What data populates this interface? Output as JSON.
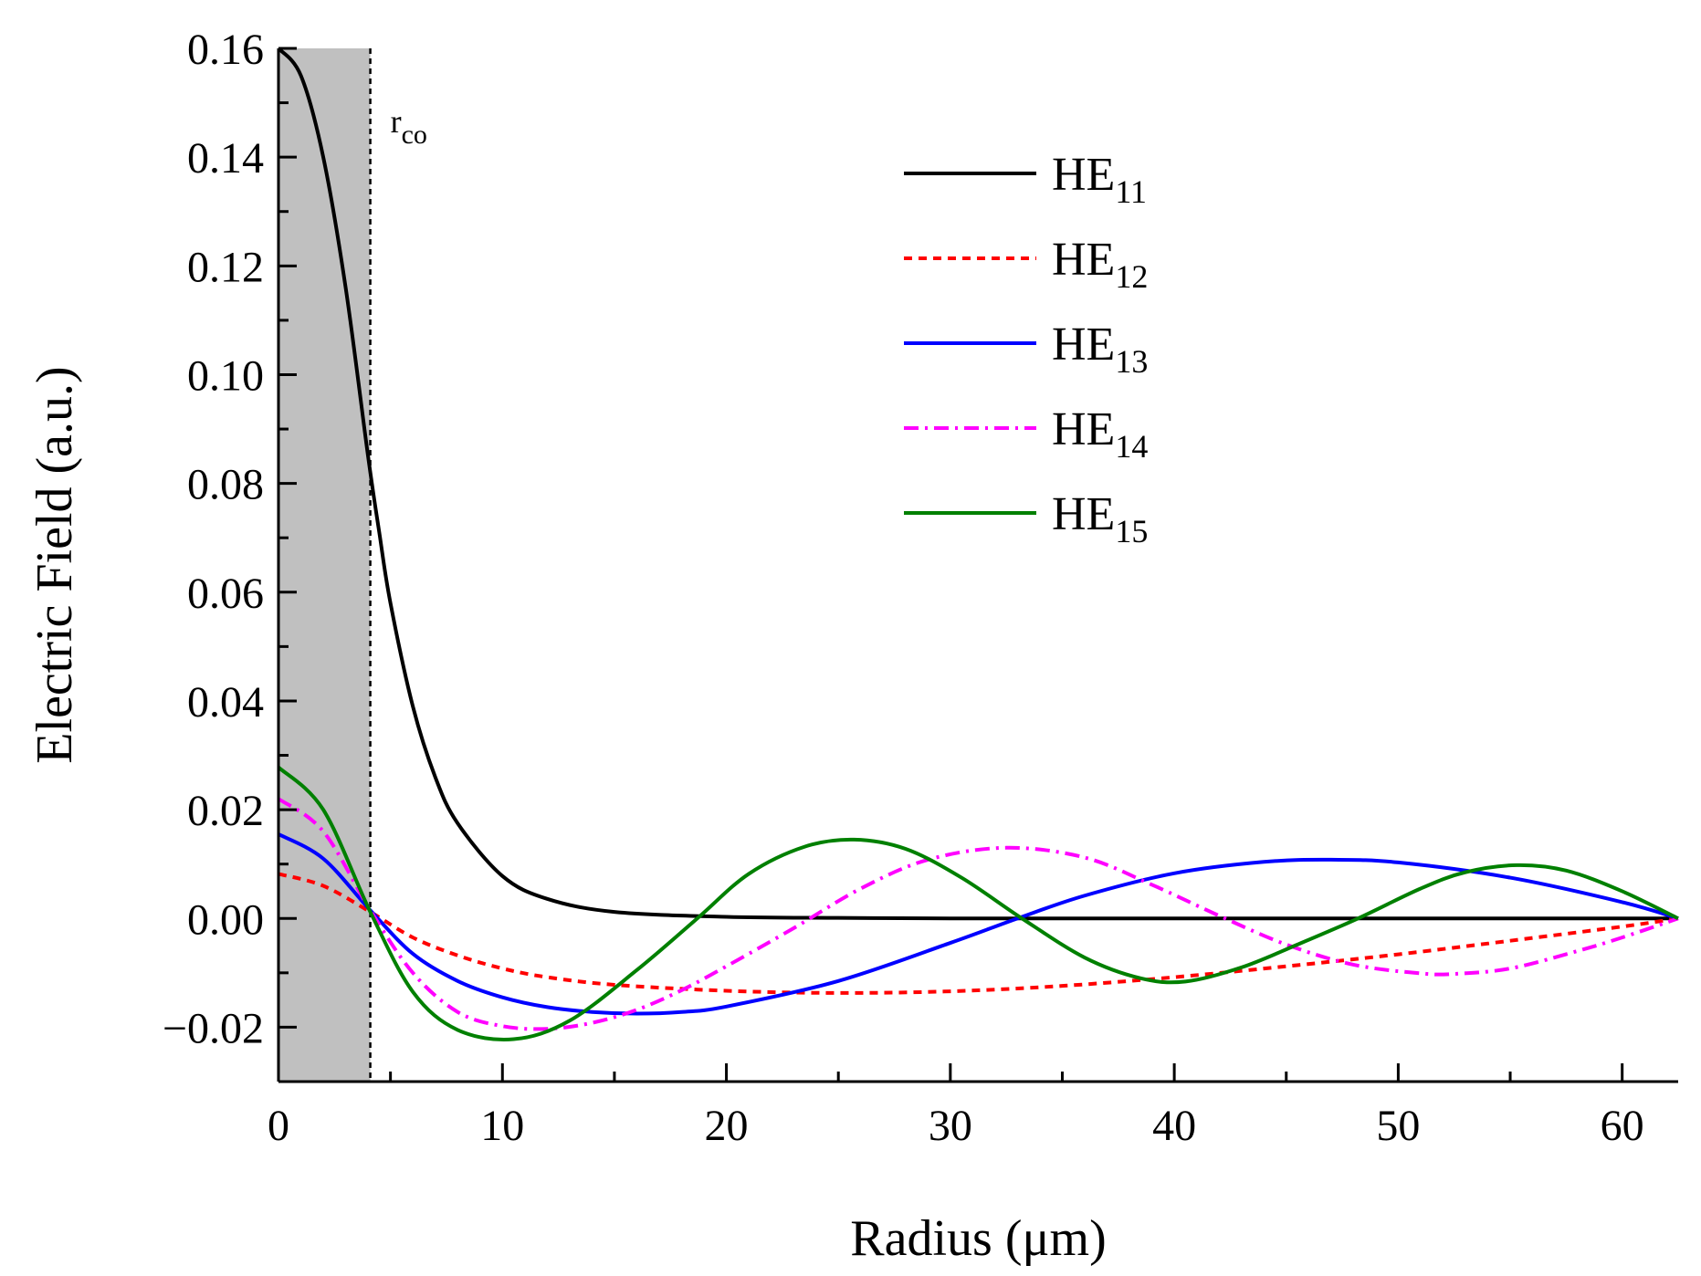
{
  "chart_data": {
    "type": "line",
    "title": "",
    "xlabel": "Radius (μm)",
    "ylabel": "Electric Field (a.u.)",
    "xlim": [
      0,
      62.5
    ],
    "ylim": [
      -0.03,
      0.16
    ],
    "xticks": [
      0,
      10,
      20,
      30,
      40,
      50,
      60
    ],
    "xtick_labels": [
      "0",
      "10",
      "20",
      "30",
      "40",
      "50",
      "60"
    ],
    "yticks": [
      -0.02,
      0.0,
      0.02,
      0.04,
      0.06,
      0.08,
      0.1,
      0.12,
      0.14,
      0.16
    ],
    "ytick_labels": [
      "−0.02",
      "0.00",
      "0.02",
      "0.04",
      "0.06",
      "0.08",
      "0.10",
      "0.12",
      "0.14",
      "0.16"
    ],
    "grid": false,
    "legend_position": "top-right",
    "core_region": {
      "x_start": 0,
      "x_end": 4.1,
      "fill": "#c0c0c0"
    },
    "annotation": {
      "text": "r",
      "subscript": "co",
      "x": 4.1
    },
    "series": [
      {
        "name": "HE11",
        "label_main": "HE",
        "label_sub": "11",
        "color": "#000000",
        "dash": "solid",
        "x": [
          0,
          1,
          2,
          3,
          4,
          4.5,
          5,
          6,
          7,
          8,
          10,
          12,
          15,
          20,
          25,
          30,
          40,
          50,
          62.5
        ],
        "y": [
          0.16,
          0.155,
          0.14,
          0.116,
          0.085,
          0.071,
          0.058,
          0.039,
          0.026,
          0.0175,
          0.0078,
          0.0036,
          0.0012,
          0.0003,
          0.0001,
          0.0,
          0.0,
          0.0,
          0.0
        ]
      },
      {
        "name": "HE12",
        "label_main": "HE",
        "label_sub": "12",
        "color": "#ff0000",
        "dash": "dashed",
        "x": [
          0,
          2,
          4.1,
          6,
          8,
          10,
          12,
          15,
          20,
          25,
          30,
          35,
          40,
          45,
          50,
          55,
          60,
          62.5
        ],
        "y": [
          0.0082,
          0.006,
          0.0012,
          -0.0035,
          -0.0068,
          -0.0092,
          -0.0108,
          -0.0122,
          -0.0133,
          -0.0137,
          -0.0134,
          -0.0124,
          -0.0108,
          -0.0088,
          -0.0066,
          -0.0041,
          -0.0015,
          0.0
        ]
      },
      {
        "name": "HE13",
        "label_main": "HE",
        "label_sub": "13",
        "color": "#0000ff",
        "dash": "solid",
        "x": [
          0,
          2,
          4.1,
          6,
          8,
          10,
          12,
          14,
          16,
          18,
          20,
          25,
          30,
          33,
          36,
          40,
          44,
          47,
          50,
          55,
          60,
          62.5
        ],
        "y": [
          0.0155,
          0.011,
          0.0015,
          -0.0065,
          -0.0115,
          -0.0145,
          -0.0163,
          -0.0172,
          -0.0175,
          -0.0172,
          -0.0162,
          -0.0115,
          -0.0045,
          0.0,
          0.0042,
          0.0083,
          0.0104,
          0.0108,
          0.0103,
          0.0075,
          0.003,
          0.0
        ]
      },
      {
        "name": "HE14",
        "label_main": "HE",
        "label_sub": "14",
        "color": "#ff00ff",
        "dash": "dashdot",
        "x": [
          0,
          2,
          4.1,
          6,
          8,
          10,
          12,
          14,
          16,
          18,
          20,
          23,
          26,
          29,
          32.5,
          36,
          39,
          42,
          45,
          48,
          51,
          52.5,
          55,
          58,
          60,
          62.5
        ],
        "y": [
          0.022,
          0.016,
          0.0015,
          -0.01,
          -0.0172,
          -0.0198,
          -0.0203,
          -0.0192,
          -0.0168,
          -0.0132,
          -0.0088,
          -0.0018,
          0.0055,
          0.0108,
          0.013,
          0.0112,
          0.0062,
          0.0005,
          -0.0048,
          -0.0085,
          -0.0101,
          -0.0102,
          -0.0092,
          -0.006,
          -0.0035,
          0.0
        ]
      },
      {
        "name": "HE15",
        "label_main": "HE",
        "label_sub": "15",
        "color": "#008000",
        "dash": "solid",
        "x": [
          0,
          2,
          4.1,
          6,
          8,
          10.5,
          13,
          16,
          18.7,
          21,
          23.5,
          25.7,
          28,
          30.5,
          33.2,
          36,
          38.5,
          40.5,
          43,
          45.5,
          48.2,
          51,
          53,
          55.3,
          57.5,
          60,
          62.5
        ],
        "y": [
          0.0278,
          0.02,
          0.0012,
          -0.0135,
          -0.0205,
          -0.0222,
          -0.0188,
          -0.0095,
          0.0,
          0.0082,
          0.0132,
          0.0145,
          0.0128,
          0.0075,
          0.0,
          -0.0072,
          -0.011,
          -0.0116,
          -0.009,
          -0.0048,
          0.0,
          0.0055,
          0.0085,
          0.0098,
          0.0088,
          0.005,
          0.0
        ]
      }
    ]
  }
}
